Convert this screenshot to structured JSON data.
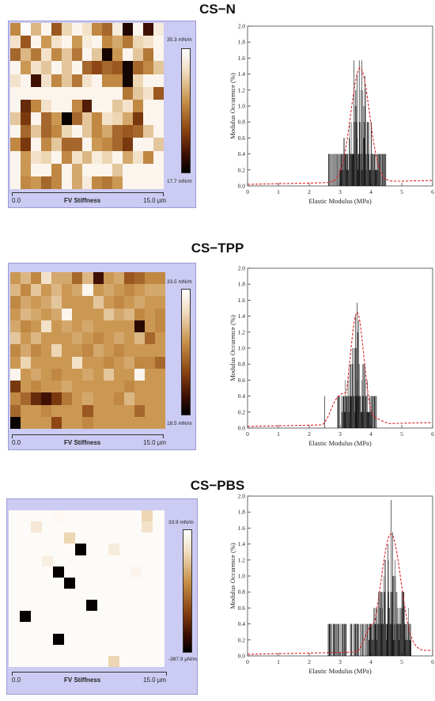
{
  "sections": [
    {
      "title": "CS−N",
      "map": {
        "axis_start": "0.0",
        "axis_title": "FV Stiffness",
        "axis_end": "15.0 µm",
        "cbar_max": "35.3 mN/m",
        "cbar_min": "17.7 mN/m",
        "pixels": [
          [
            0.45,
            0.02,
            0.3,
            0.05,
            0.6,
            0.2,
            0.05,
            0.15,
            0.45,
            0.55,
            0.1,
            0.92,
            0.05,
            0.85,
            0.1
          ],
          [
            0.15,
            0.6,
            0.05,
            0.4,
            0.15,
            0.05,
            0.4,
            0.1,
            0.05,
            0.45,
            0.35,
            0.5,
            0.2,
            0.15,
            0.05
          ],
          [
            0.55,
            0.3,
            0.5,
            0.15,
            0.45,
            0.25,
            0.5,
            0.05,
            0.25,
            0.95,
            0.4,
            0.05,
            0.25,
            0.5,
            0.05
          ],
          [
            0.05,
            0.4,
            0.15,
            0.25,
            0.05,
            0.25,
            0.05,
            0.55,
            0.65,
            0.55,
            0.6,
            0.95,
            0.55,
            0.45,
            0.25
          ],
          [
            0.15,
            0.05,
            0.85,
            0.15,
            0.45,
            0.25,
            0.5,
            0.15,
            0.05,
            0.45,
            0.45,
            0.95,
            0.2,
            0.05,
            0.05
          ],
          [
            0.05,
            0.05,
            0.05,
            0.05,
            0.05,
            0.05,
            0.05,
            0.05,
            0.05,
            0.05,
            0.05,
            0.5,
            0.25,
            0.15,
            0.6
          ],
          [
            0.05,
            0.75,
            0.45,
            0.15,
            0.05,
            0.05,
            0.45,
            0.8,
            0.05,
            0.05,
            0.25,
            0.15,
            0.45,
            0.05,
            0.05
          ],
          [
            0.25,
            0.7,
            0.05,
            0.55,
            0.4,
            0.98,
            0.55,
            0.25,
            0.45,
            0.15,
            0.2,
            0.35,
            0.7,
            0.05,
            0.05
          ],
          [
            0.05,
            0.55,
            0.25,
            0.55,
            0.45,
            0.2,
            0.05,
            0.25,
            0.45,
            0.35,
            0.55,
            0.6,
            0.55,
            0.25,
            0.05
          ],
          [
            0.45,
            0.7,
            0.05,
            0.45,
            0.25,
            0.55,
            0.55,
            0.05,
            0.4,
            0.45,
            0.55,
            0.7,
            0.05,
            0.05,
            0.25
          ],
          [
            0.05,
            0.4,
            0.15,
            0.2,
            0.05,
            0.45,
            0.15,
            0.3,
            0.1,
            0.2,
            0.05,
            0.35,
            0.15,
            0.45,
            0.05
          ],
          [
            0.05,
            0.4,
            0.05,
            0.05,
            0.45,
            0.05,
            0.35,
            0.05,
            0.05,
            0.05,
            0.25,
            0.05,
            0.05,
            0.05,
            0.05
          ],
          [
            0.05,
            0.45,
            0.4,
            0.55,
            0.45,
            0.05,
            0.35,
            0.1,
            0.45,
            0.5,
            0.4,
            0.05,
            0.05,
            0.05,
            0.05
          ]
        ]
      },
      "hist": {
        "peak": 3.65,
        "sigma": 0.3,
        "peak_y": 1.43,
        "tail_left": 2.6,
        "tail_right": 4.5,
        "shoulder": 0,
        "tallest": [
          [
            3.45,
            1.57
          ],
          [
            3.62,
            1.57
          ],
          [
            3.7,
            1.57
          ],
          [
            3.55,
            1.4
          ],
          [
            3.8,
            1.38
          ]
        ]
      }
    },
    {
      "title": "CS−TPP",
      "map": {
        "axis_start": "0.0",
        "axis_title": "FV Stiffness",
        "axis_end": "15.0 µm",
        "cbar_max": "33.5 mN/m",
        "cbar_min": "18.5 mN/m",
        "pixels": [
          [
            0.4,
            0.3,
            0.45,
            0.15,
            0.35,
            0.35,
            0.55,
            0.3,
            0.85,
            0.4,
            0.35,
            0.6,
            0.55,
            0.45,
            0.45
          ],
          [
            0.3,
            0.45,
            0.25,
            0.4,
            0.3,
            0.4,
            0.35,
            0.05,
            0.4,
            0.35,
            0.4,
            0.45,
            0.4,
            0.35,
            0.35
          ],
          [
            0.45,
            0.35,
            0.4,
            0.35,
            0.25,
            0.4,
            0.4,
            0.4,
            0.25,
            0.4,
            0.45,
            0.4,
            0.35,
            0.4,
            0.4
          ],
          [
            0.4,
            0.3,
            0.35,
            0.4,
            0.35,
            0.05,
            0.4,
            0.4,
            0.4,
            0.25,
            0.35,
            0.3,
            0.45,
            0.4,
            0.45
          ],
          [
            0.35,
            0.45,
            0.4,
            0.15,
            0.4,
            0.35,
            0.4,
            0.35,
            0.4,
            0.4,
            0.4,
            0.4,
            0.9,
            0.4,
            0.45
          ],
          [
            0.25,
            0.4,
            0.3,
            0.4,
            0.4,
            0.4,
            0.35,
            0.4,
            0.45,
            0.4,
            0.35,
            0.4,
            0.3,
            0.55,
            0.4
          ],
          [
            0.45,
            0.35,
            0.45,
            0.4,
            0.2,
            0.4,
            0.4,
            0.45,
            0.35,
            0.4,
            0.45,
            0.4,
            0.4,
            0.4,
            0.4
          ],
          [
            0.4,
            0.2,
            0.4,
            0.4,
            0.4,
            0.4,
            0.15,
            0.4,
            0.4,
            0.45,
            0.4,
            0.35,
            0.45,
            0.45,
            0.55
          ],
          [
            0.05,
            0.4,
            0.35,
            0.4,
            0.45,
            0.4,
            0.4,
            0.35,
            0.4,
            0.25,
            0.4,
            0.4,
            0.05,
            0.4,
            0.4
          ],
          [
            0.7,
            0.4,
            0.45,
            0.4,
            0.4,
            0.35,
            0.4,
            0.4,
            0.4,
            0.4,
            0.4,
            0.45,
            0.4,
            0.4,
            0.4
          ],
          [
            0.45,
            0.55,
            0.75,
            0.85,
            0.7,
            0.5,
            0.4,
            0.35,
            0.4,
            0.4,
            0.45,
            0.3,
            0.4,
            0.4,
            0.4
          ],
          [
            0.55,
            0.4,
            0.4,
            0.45,
            0.4,
            0.4,
            0.4,
            0.6,
            0.4,
            0.4,
            0.4,
            0.4,
            0.55,
            0.4,
            0.4
          ],
          [
            0.98,
            0.4,
            0.4,
            0.4,
            0.65,
            0.4,
            0.4,
            0.45,
            0.4,
            0.4,
            0.4,
            0.4,
            0.4,
            0.4,
            0.4
          ]
        ]
      },
      "hist": {
        "peak": 3.55,
        "sigma": 0.22,
        "peak_y": 1.4,
        "tail_left": 2.8,
        "tail_right": 4.2,
        "shoulder": 0.45,
        "tallest": [
          [
            3.55,
            1.57
          ],
          [
            3.5,
            1.4
          ],
          [
            3.6,
            1.35
          ],
          [
            2.5,
            0.4
          ]
        ]
      }
    },
    {
      "title": "CS−PBS",
      "map": {
        "axis_start": "0.0",
        "axis_title": "FV Stiffness",
        "axis_end": "15.0 µm",
        "cbar_max": "33.9 mN/m",
        "cbar_min": "-387.9 µN/m",
        "pixels": [
          [
            0.02,
            0.02,
            0.02,
            0.02,
            0.04,
            0.02,
            0.02,
            0.02,
            0.02,
            0.02,
            0.02,
            0.02,
            0.2,
            0.02
          ],
          [
            0.02,
            0.02,
            0.12,
            0.02,
            0.02,
            0.02,
            0.02,
            0.02,
            0.02,
            0.02,
            0.02,
            0.02,
            0.15,
            0.02
          ],
          [
            0.02,
            0.02,
            0.02,
            0.02,
            0.02,
            0.2,
            0.02,
            0.02,
            0.02,
            0.02,
            0.02,
            0.02,
            0.02,
            0.02
          ],
          [
            0.02,
            0.02,
            0.02,
            0.02,
            0.02,
            0.02,
            0.99,
            0.02,
            0.02,
            0.1,
            0.02,
            0.02,
            0.02,
            0.02
          ],
          [
            0.02,
            0.02,
            0.02,
            0.08,
            0.02,
            0.02,
            0.02,
            0.02,
            0.02,
            0.02,
            0.02,
            0.02,
            0.02,
            0.02
          ],
          [
            0.02,
            0.02,
            0.02,
            0.02,
            0.99,
            0.02,
            0.02,
            0.02,
            0.02,
            0.02,
            0.02,
            0.05,
            0.02,
            0.02
          ],
          [
            0.02,
            0.02,
            0.02,
            0.02,
            0.02,
            0.99,
            0.02,
            0.02,
            0.02,
            0.02,
            0.02,
            0.02,
            0.02,
            0.02
          ],
          [
            0.02,
            0.02,
            0.02,
            0.02,
            0.02,
            0.02,
            0.02,
            0.02,
            0.02,
            0.02,
            0.02,
            0.02,
            0.02,
            0.02
          ],
          [
            0.02,
            0.02,
            0.02,
            0.02,
            0.02,
            0.02,
            0.02,
            0.99,
            0.02,
            0.02,
            0.02,
            0.02,
            0.02,
            0.02
          ],
          [
            0.02,
            0.99,
            0.02,
            0.02,
            0.02,
            0.02,
            0.02,
            0.02,
            0.02,
            0.02,
            0.02,
            0.02,
            0.02,
            0.02
          ],
          [
            0.02,
            0.02,
            0.02,
            0.02,
            0.02,
            0.02,
            0.02,
            0.02,
            0.02,
            0.02,
            0.02,
            0.02,
            0.02,
            0.02
          ],
          [
            0.02,
            0.02,
            0.02,
            0.02,
            0.99,
            0.02,
            0.02,
            0.02,
            0.02,
            0.02,
            0.02,
            0.02,
            0.02,
            0.02
          ],
          [
            0.02,
            0.02,
            0.02,
            0.02,
            0.02,
            0.02,
            0.02,
            0.02,
            0.02,
            0.02,
            0.02,
            0.02,
            0.02,
            0.02
          ],
          [
            0.02,
            0.02,
            0.02,
            0.02,
            0.02,
            0.02,
            0.02,
            0.02,
            0.02,
            0.2,
            0.02,
            0.02,
            0.02,
            0.02
          ]
        ]
      },
      "hist": {
        "peak": 4.65,
        "sigma": 0.32,
        "peak_y": 1.47,
        "tail_left": 2.6,
        "tail_right": 5.3,
        "shoulder": 0.45,
        "tallest": [
          [
            4.65,
            1.95
          ],
          [
            4.7,
            1.55
          ],
          [
            4.55,
            1.4
          ],
          [
            2.65,
            0.4
          ]
        ]
      }
    }
  ],
  "chart_data": {
    "type": "bar",
    "xlabel": "Elastic Modulus (MPa)",
    "ylabel": "Modulus Occurence (%)",
    "xlim": [
      0,
      6
    ],
    "ylim": [
      0,
      2.0
    ],
    "x_ticks": [
      "0",
      "1",
      "2",
      "3",
      "4",
      "5",
      "6"
    ],
    "y_ticks": [
      "0.0",
      "0.2",
      "0.4",
      "0.6",
      "0.8",
      "1.0",
      "1.2",
      "1.4",
      "1.6",
      "1.8",
      "2.0"
    ]
  },
  "colors": {
    "panel": "#cbcbf3",
    "fit_line": "#e02020",
    "bars": "#000000"
  }
}
